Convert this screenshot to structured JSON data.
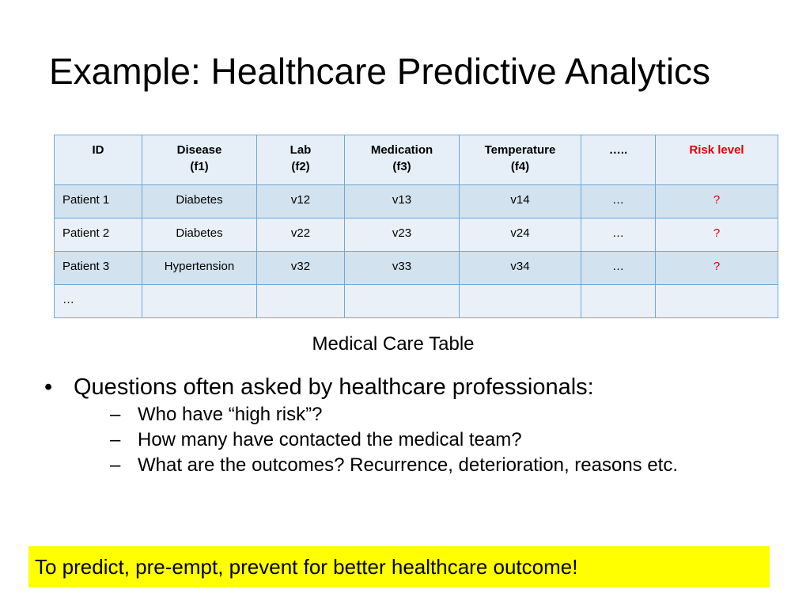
{
  "slide": {
    "title": "Example: Healthcare Predictive Analytics"
  },
  "table": {
    "headers": [
      {
        "line1": "ID",
        "line2": ""
      },
      {
        "line1": "Disease",
        "line2": "(f1)"
      },
      {
        "line1": "Lab",
        "line2": "(f2)"
      },
      {
        "line1": "Medication",
        "line2": "(f3)"
      },
      {
        "line1": "Temperature",
        "line2": "(f4)"
      },
      {
        "line1": "…..",
        "line2": ""
      },
      {
        "line1": "Risk level",
        "line2": ""
      }
    ],
    "rows": [
      [
        "Patient 1",
        "Diabetes",
        "v12",
        "v13",
        "v14",
        "…",
        "?"
      ],
      [
        "Patient 2",
        "Diabetes",
        "v22",
        "v23",
        "v24",
        "…",
        "?"
      ],
      [
        "Patient 3",
        "Hypertension",
        "v32",
        "v33",
        "v34",
        "…",
        "?"
      ],
      [
        "…",
        "",
        "",
        "",
        "",
        "",
        ""
      ]
    ],
    "caption": "Medical Care Table"
  },
  "bullets": {
    "mark": "•",
    "main": "Questions often asked by healthcare professionals:",
    "sub_mark": "–",
    "sub": [
      "Who have “high risk”?",
      "How many have contacted the medical team?",
      "What are the outcomes? Recurrence, deterioration, reasons etc."
    ]
  },
  "callout": {
    "text": "To predict, pre-empt,  prevent for better healthcare outcome!",
    "background": "#ffff00"
  },
  "colors": {
    "risk": "#e00000",
    "table_border": "#6fa8d6",
    "row_dark": "#d2e2ee",
    "row_light": "#e9f0f8"
  }
}
